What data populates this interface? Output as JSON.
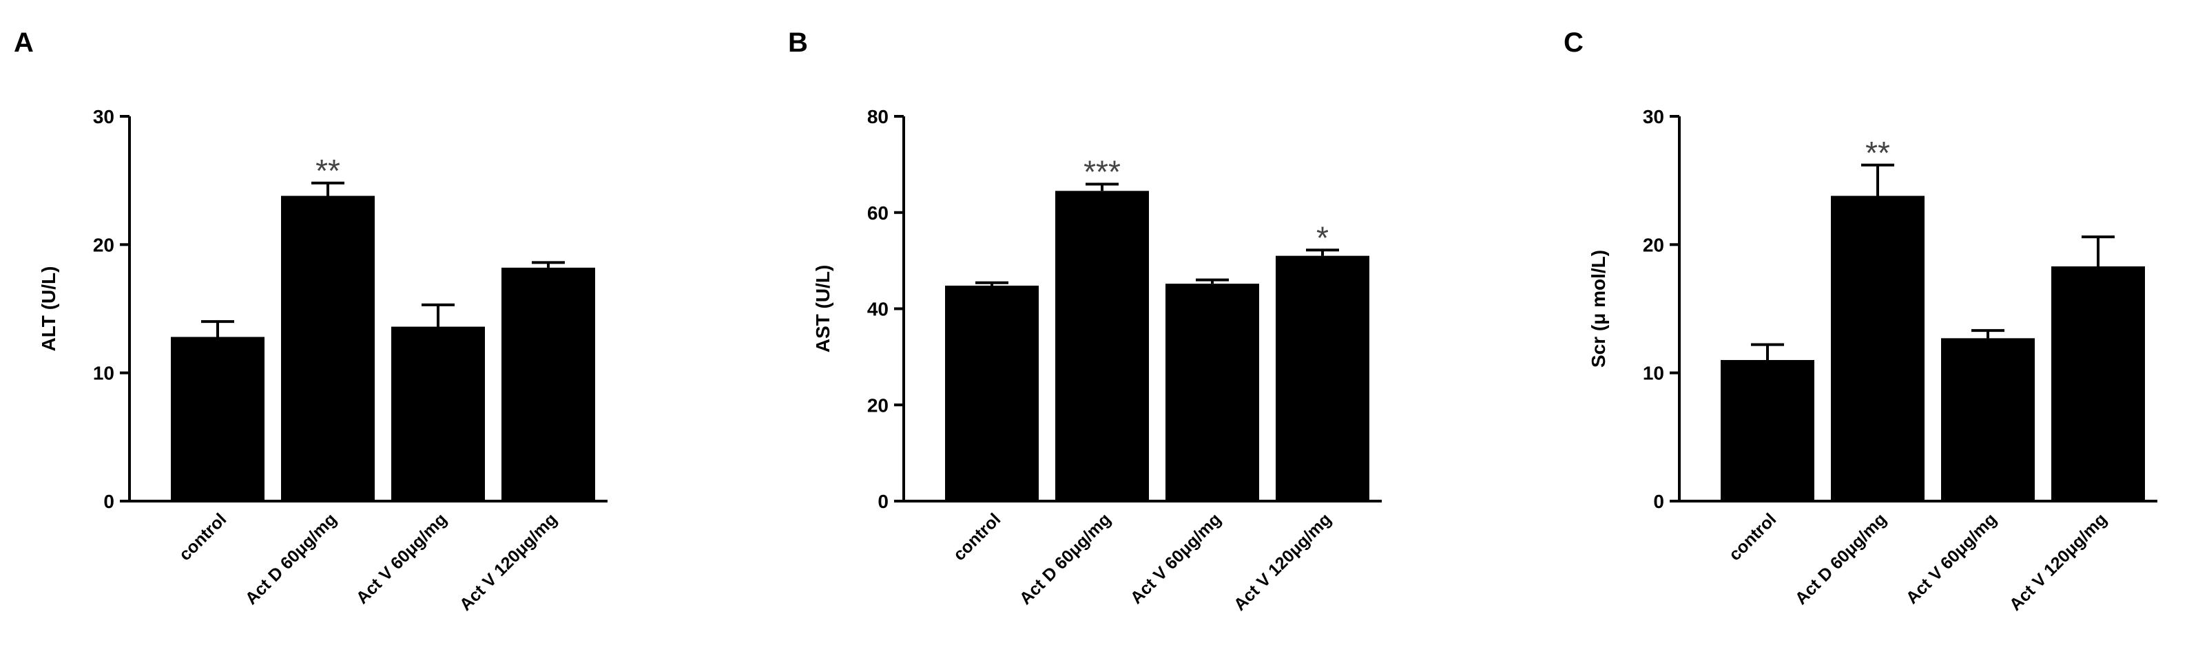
{
  "chart_data": [
    {
      "type": "bar",
      "panel": "A",
      "y_label": "ALT (U/L)",
      "categories": [
        "control",
        "Act D 60μg/mg",
        "Act V 60μg/mg",
        "Act V 120μg/mg"
      ],
      "values": [
        12.8,
        23.8,
        13.6,
        18.2
      ],
      "errors": [
        1.2,
        1.0,
        1.7,
        0.4
      ],
      "color": "#000000",
      "ylim": [
        0,
        30
      ],
      "yticks": [
        0,
        10,
        20,
        30
      ],
      "annotations": [
        {
          "category": "Act D 60μg/mg",
          "text": "**"
        }
      ]
    },
    {
      "type": "bar",
      "panel": "B",
      "y_label": "AST (U/L)",
      "categories": [
        "control",
        "Act D 60μg/mg",
        "Act V 60μg/mg",
        "Act V 120μg/mg"
      ],
      "values": [
        44.8,
        64.5,
        45.2,
        51.0
      ],
      "errors": [
        0.6,
        1.4,
        0.8,
        1.2
      ],
      "color": "#000000",
      "ylim": [
        0,
        80
      ],
      "yticks": [
        0,
        20,
        40,
        60,
        80
      ],
      "annotations": [
        {
          "category": "Act D 60μg/mg",
          "text": "***"
        },
        {
          "category": "Act V 120μg/mg",
          "text": "*"
        }
      ]
    },
    {
      "type": "bar",
      "panel": "C",
      "y_label": "Scr (μ mol/L)",
      "categories": [
        "control",
        "Act D 60μg/mg",
        "Act V 60μg/mg",
        "Act V 120μg/mg"
      ],
      "values": [
        11.0,
        23.8,
        12.7,
        18.3
      ],
      "errors": [
        1.2,
        2.4,
        0.6,
        2.3
      ],
      "color": "#000000",
      "ylim": [
        0,
        30
      ],
      "yticks": [
        0,
        10,
        20,
        30
      ],
      "annotations": [
        {
          "category": "Act D 60μg/mg",
          "text": "**"
        }
      ]
    }
  ]
}
